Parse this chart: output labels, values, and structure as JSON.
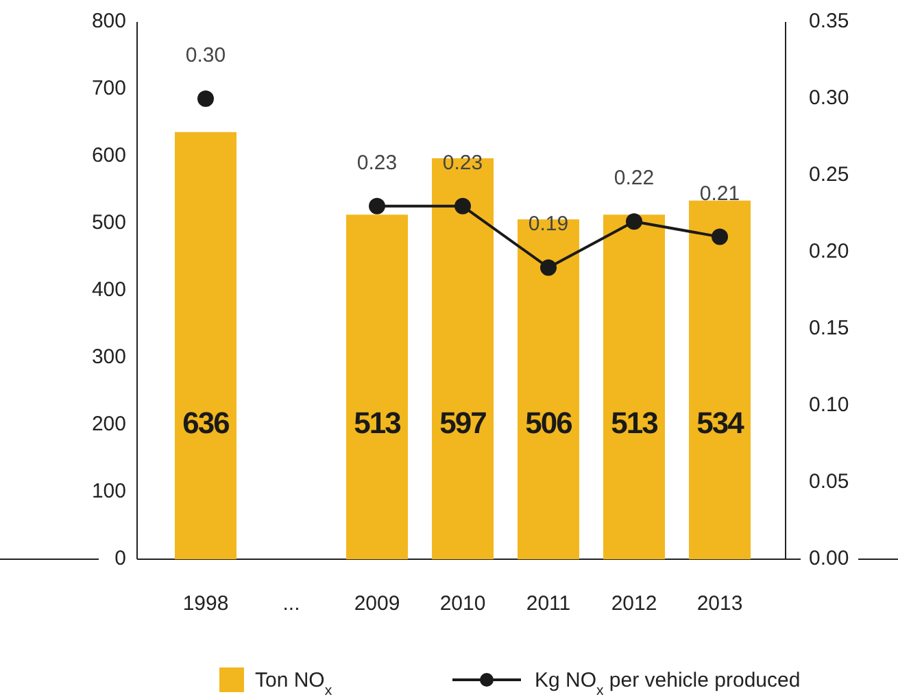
{
  "chart_data": {
    "type": "bar",
    "categories": [
      "1998",
      "...",
      "2009",
      "2010",
      "2011",
      "2012",
      "2013"
    ],
    "series": [
      {
        "name": "Ton NO$_{x}$",
        "type": "bar",
        "color": "#f2b71f",
        "values": [
          636,
          null,
          513,
          597,
          506,
          513,
          534
        ],
        "value_labels": [
          "636",
          null,
          "513",
          "597",
          "506",
          "513",
          "534"
        ]
      },
      {
        "name": "Kg NO$_{x}$ per vehicle produced",
        "type": "line",
        "axis": "y2",
        "color": "#1a1a1a",
        "values": [
          0.3,
          null,
          0.23,
          0.23,
          0.19,
          0.22,
          0.21
        ],
        "value_labels": [
          "0.30",
          null,
          "0.23",
          "0.23",
          "0.19",
          "0.22",
          "0.21"
        ]
      }
    ],
    "ylim": [
      0,
      800
    ],
    "yticks": [
      0,
      100,
      200,
      300,
      400,
      500,
      600,
      700,
      800
    ],
    "y2lim": [
      0,
      0.35
    ],
    "y2ticks": [
      {
        "value": 0,
        "label": "0.00"
      },
      {
        "value": 0.05,
        "label": "0.05"
      },
      {
        "value": 0.1,
        "label": "0.10"
      },
      {
        "value": 0.15,
        "label": "0.15"
      },
      {
        "value": 0.2,
        "label": "0.20"
      },
      {
        "value": 0.25,
        "label": "0.25"
      },
      {
        "value": 0.3,
        "label": "0.30"
      },
      {
        "value": 0.35,
        "label": "0.35"
      }
    ],
    "marker": "circle",
    "line_style": "solid",
    "grid": false,
    "legend": "bottom"
  }
}
